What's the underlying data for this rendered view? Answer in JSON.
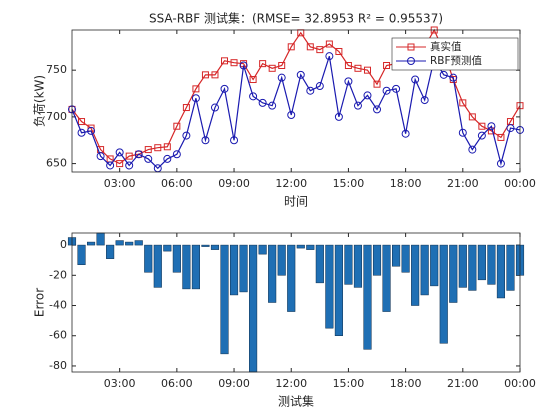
{
  "chart_data": [
    {
      "type": "line",
      "title": "SSA-RBF 测试集：(RMSE= 32.8953 R² = 0.95537)",
      "x_label": "时间",
      "y_label": "负荷(kW)",
      "x": [
        0.5,
        1,
        1.5,
        2,
        2.5,
        3,
        3.5,
        4,
        4.5,
        5,
        5.5,
        6,
        6.5,
        7,
        7.5,
        8,
        8.5,
        9,
        9.5,
        10,
        10.5,
        11,
        11.5,
        12,
        12.5,
        13,
        13.5,
        14,
        14.5,
        15,
        15.5,
        16,
        16.5,
        17,
        17.5,
        18,
        18.5,
        19,
        19.5,
        20,
        20.5,
        21,
        21.5,
        22,
        22.5,
        23,
        23.5,
        24
      ],
      "series": [
        {
          "name": "真实值",
          "color": "#d62728",
          "marker": "square",
          "values": [
            708,
            695,
            688,
            665,
            655,
            650,
            658,
            660,
            665,
            667,
            668,
            690,
            710,
            730,
            745,
            745,
            760,
            758,
            757,
            740,
            757,
            752,
            755,
            775,
            790,
            775,
            772,
            778,
            770,
            755,
            752,
            750,
            735,
            755,
            757,
            760,
            770,
            775,
            793,
            770,
            740,
            715,
            700,
            690,
            685,
            678,
            695,
            712
          ]
        },
        {
          "name": "RBF预测值",
          "color": "#1a1ab0",
          "marker": "circle",
          "values": [
            708,
            683,
            685,
            658,
            648,
            662,
            648,
            660,
            655,
            645,
            655,
            660,
            680,
            720,
            675,
            710,
            730,
            675,
            755,
            722,
            715,
            712,
            742,
            702,
            745,
            728,
            733,
            765,
            700,
            738,
            712,
            723,
            708,
            728,
            730,
            682,
            740,
            718,
            762,
            745,
            742,
            683,
            665,
            680,
            690,
            650,
            688,
            686
          ]
        }
      ],
      "xlim": [
        0.5,
        24
      ],
      "ylim": [
        641,
        793
      ],
      "xticks": [
        {
          "value": 3,
          "label": "03:00"
        },
        {
          "value": 6,
          "label": "06:00"
        },
        {
          "value": 9,
          "label": "09:00"
        },
        {
          "value": 12,
          "label": "12:00"
        },
        {
          "value": 15,
          "label": "15:00"
        },
        {
          "value": 18,
          "label": "18:00"
        },
        {
          "value": 21,
          "label": "21:00"
        },
        {
          "value": 24,
          "label": "00:00"
        }
      ],
      "yticks": [
        650,
        700,
        750
      ],
      "legend": "northeast"
    },
    {
      "type": "bar",
      "x_label": "测试集",
      "y_label": "Error",
      "x": [
        0.5,
        1,
        1.5,
        2,
        2.5,
        3,
        3.5,
        4,
        4.5,
        5,
        5.5,
        6,
        6.5,
        7,
        7.5,
        8,
        8.5,
        9,
        9.5,
        10,
        10.5,
        11,
        11.5,
        12,
        12.5,
        13,
        13.5,
        14,
        14.5,
        15,
        15.5,
        16,
        16.5,
        17,
        17.5,
        18,
        18.5,
        19,
        19.5,
        20,
        20.5,
        21,
        21.5,
        22,
        22.5,
        23,
        23.5,
        24
      ],
      "values": [
        5,
        -13,
        2,
        8,
        -9,
        3,
        2,
        3,
        -18,
        -28,
        -4,
        -18,
        -29,
        -29,
        -1,
        -3,
        -72,
        -33,
        -31,
        -84,
        -6,
        -38,
        -20,
        -44,
        -2,
        -3,
        -25,
        -55,
        -60,
        -26,
        -28,
        -69,
        -20,
        -44,
        -14,
        -18,
        -40,
        -33,
        -27,
        -65,
        -38,
        -28,
        -30,
        -23,
        -26,
        -35,
        -30,
        -20
      ],
      "color": "#1f6fb4",
      "xlim": [
        0.5,
        24
      ],
      "ylim": [
        -84,
        8
      ],
      "xticks": [
        {
          "value": 3,
          "label": "03:00"
        },
        {
          "value": 6,
          "label": "06:00"
        },
        {
          "value": 9,
          "label": "09:00"
        },
        {
          "value": 12,
          "label": "12:00"
        },
        {
          "value": 15,
          "label": "15:00"
        },
        {
          "value": 18,
          "label": "18:00"
        },
        {
          "value": 21,
          "label": "21:00"
        },
        {
          "value": 24,
          "label": "00:00"
        }
      ],
      "yticks": [
        -80,
        -60,
        -40,
        -20,
        0
      ]
    }
  ]
}
